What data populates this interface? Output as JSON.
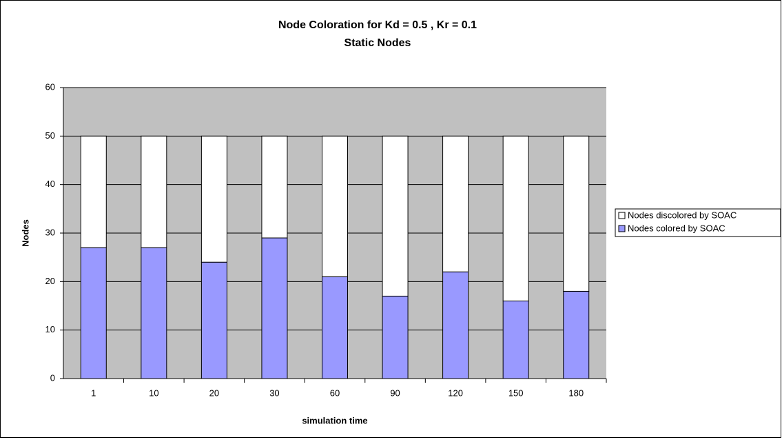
{
  "chart_data": {
    "type": "stacked_bar",
    "title": "Node Coloration for Kd = 0.5 , Kr = 0.1",
    "subtitle": "Static Nodes",
    "x_label": "simulation time",
    "y_label": "Nodes",
    "categories": [
      "1",
      "10",
      "20",
      "30",
      "60",
      "90",
      "120",
      "150",
      "180"
    ],
    "series": [
      {
        "name": "Nodes colored by SOAC",
        "color": "#9999ff",
        "values": [
          27,
          27,
          24,
          29,
          21,
          17,
          22,
          16,
          18
        ]
      },
      {
        "name": "Nodes discolored by SOAC",
        "color": "#ffffff",
        "values": [
          23,
          23,
          26,
          21,
          29,
          33,
          28,
          34,
          32
        ]
      }
    ],
    "ylim": [
      0,
      60
    ],
    "yticks": [
      0,
      10,
      20,
      30,
      40,
      50,
      60
    ],
    "grid": true,
    "legend": "right"
  }
}
